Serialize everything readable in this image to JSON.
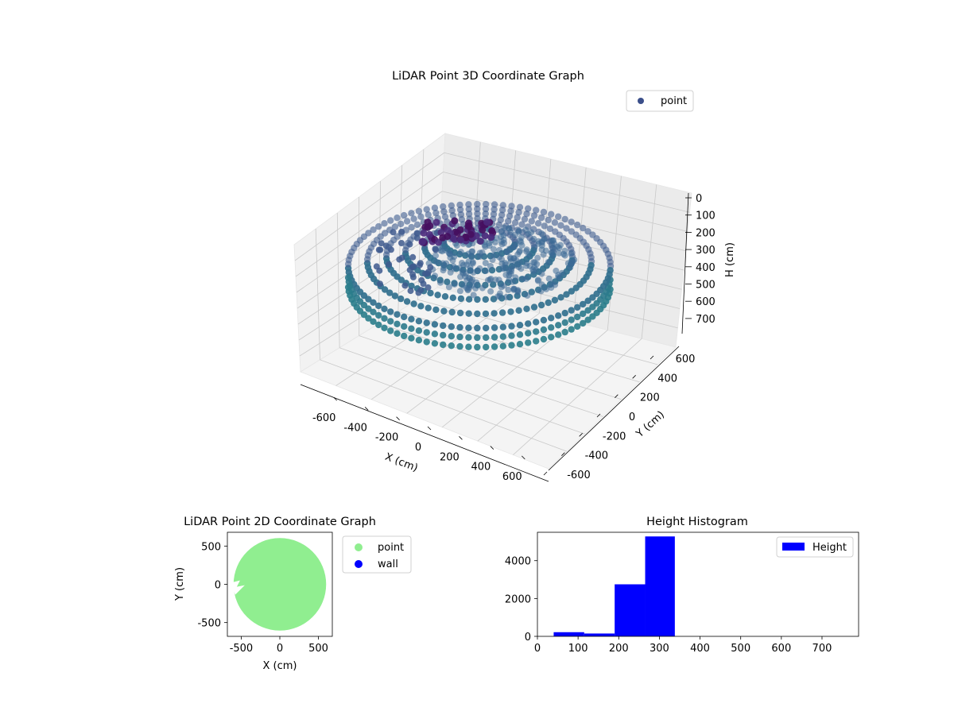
{
  "chart_data": [
    {
      "type": "scatter",
      "projection": "3d",
      "title": "LiDAR Point 3D Coordinate Graph",
      "xlabel": "X (cm)",
      "ylabel": "Y (cm)",
      "zlabel": "H (cm)",
      "xticks": [
        "-600",
        "-400",
        "-200",
        "0",
        "200",
        "400",
        "600"
      ],
      "yticks": [
        "-600",
        "-400",
        "-200",
        "0",
        "200",
        "400",
        "600"
      ],
      "zticks": [
        "0",
        "100",
        "200",
        "300",
        "400",
        "500",
        "600",
        "700"
      ],
      "xlim": [
        -650,
        650
      ],
      "ylim": [
        -650,
        650
      ],
      "zlim": [
        750,
        0
      ],
      "zaxis_inverted": true,
      "grid": true,
      "legend": {
        "placement": "top-right",
        "entries": [
          "point"
        ]
      },
      "series": [
        {
          "name": "point",
          "marker": "circle",
          "colormap": "viridis",
          "color": "#3b528b",
          "description_points": [
            {
              "x": 0,
              "y": 0,
              "radius": 600,
              "h": [
                290,
                320
              ]
            },
            {
              "x": -400,
              "y": 150,
              "h": [
                150,
                250
              ]
            },
            {
              "x": -100,
              "y": 300,
              "h": [
                150,
                200
              ]
            }
          ]
        }
      ]
    },
    {
      "type": "scatter",
      "title": "LiDAR Point 2D Coordinate Graph",
      "xlabel": "X (cm)",
      "ylabel": "Y (cm)",
      "xticks": [
        "-500",
        "0",
        "500"
      ],
      "yticks": [
        "-500",
        "0",
        "500"
      ],
      "xlim": [
        -680,
        680
      ],
      "ylim": [
        -680,
        680
      ],
      "legend": {
        "placement": "outside-right",
        "entries": [
          "point",
          "wall"
        ]
      },
      "series": [
        {
          "name": "point",
          "color": "#90ee90",
          "shape": "disc",
          "center": [
            0,
            0
          ],
          "radius": 600
        },
        {
          "name": "wall",
          "color": "#0000ff",
          "values": []
        }
      ]
    },
    {
      "type": "bar",
      "subtype": "histogram",
      "title": "Height Histogram",
      "xticks": [
        "0",
        "100",
        "200",
        "300",
        "400",
        "500",
        "600",
        "700"
      ],
      "yticks": [
        "0",
        "2000",
        "4000"
      ],
      "xlim": [
        0,
        790
      ],
      "ylim": [
        0,
        5500
      ],
      "legend": {
        "placement": "top-right",
        "entries": [
          "Height"
        ]
      },
      "series": [
        {
          "name": "Height",
          "color": "#0000ff",
          "bins": [
            {
              "x0": 40,
              "x1": 115,
              "count": 220
            },
            {
              "x0": 115,
              "x1": 190,
              "count": 150
            },
            {
              "x0": 190,
              "x1": 265,
              "count": 2750
            },
            {
              "x0": 265,
              "x1": 338,
              "count": 5280
            },
            {
              "x0": 338,
              "x1": 412,
              "count": 0
            },
            {
              "x0": 412,
              "x1": 486,
              "count": 0
            },
            {
              "x0": 486,
              "x1": 560,
              "count": 0
            },
            {
              "x0": 560,
              "x1": 634,
              "count": 0
            },
            {
              "x0": 634,
              "x1": 708,
              "count": 0
            },
            {
              "x0": 708,
              "x1": 782,
              "count": 0
            }
          ]
        }
      ]
    }
  ]
}
